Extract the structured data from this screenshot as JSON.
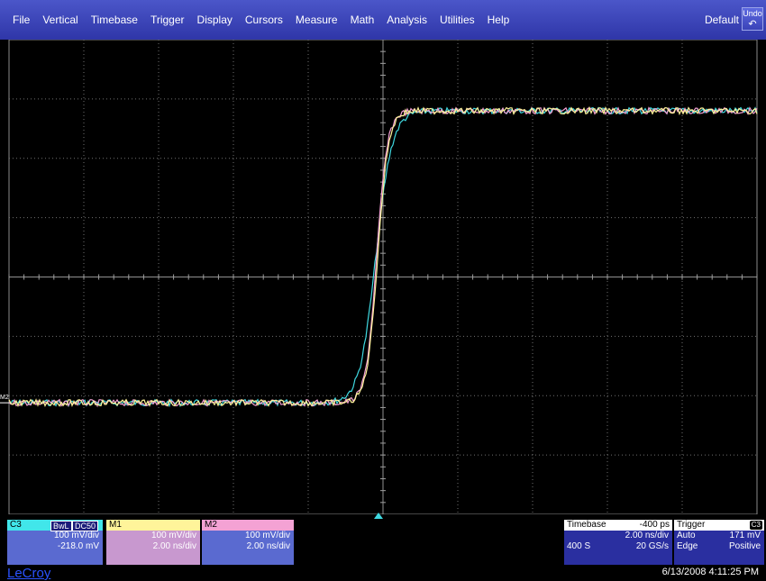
{
  "menu": {
    "items": [
      "File",
      "Vertical",
      "Timebase",
      "Trigger",
      "Display",
      "Cursors",
      "Measure",
      "Math",
      "Analysis",
      "Utilities",
      "Help"
    ],
    "default_label": "Default",
    "undo_label": "Undo",
    "undo_glyph": "↶"
  },
  "grid": {
    "divisions_x": 10,
    "divisions_y": 8
  },
  "traces": {
    "colors": {
      "C3": "#3fd8e0",
      "M1": "#fff49a",
      "M2": "#f4a2d4"
    },
    "ground_marker_label": "M2"
  },
  "channels": {
    "c3": {
      "name": "C3",
      "badge_bwl": "BwL",
      "badge_dc": "DC50",
      "scale": "100 mV/div",
      "offset": "-218.0 mV"
    },
    "m1": {
      "name": "M1",
      "scale": "100 mV/div",
      "timebase": "2.00 ns/div"
    },
    "m2": {
      "name": "M2",
      "scale": "100 mV/div",
      "timebase": "2.00 ns/div"
    }
  },
  "timebase": {
    "title": "Timebase",
    "delay": "-400 ps",
    "time_div": "2.00 ns/div",
    "samples": "400 S",
    "rate": "20 GS/s"
  },
  "trigger": {
    "title": "Trigger",
    "channel_badge": "C3",
    "mode": "Auto",
    "level": "171 mV",
    "type": "Edge",
    "slope": "Positive"
  },
  "brand": "LeCroy",
  "datetime": "6/13/2008 4:11:25 PM"
}
